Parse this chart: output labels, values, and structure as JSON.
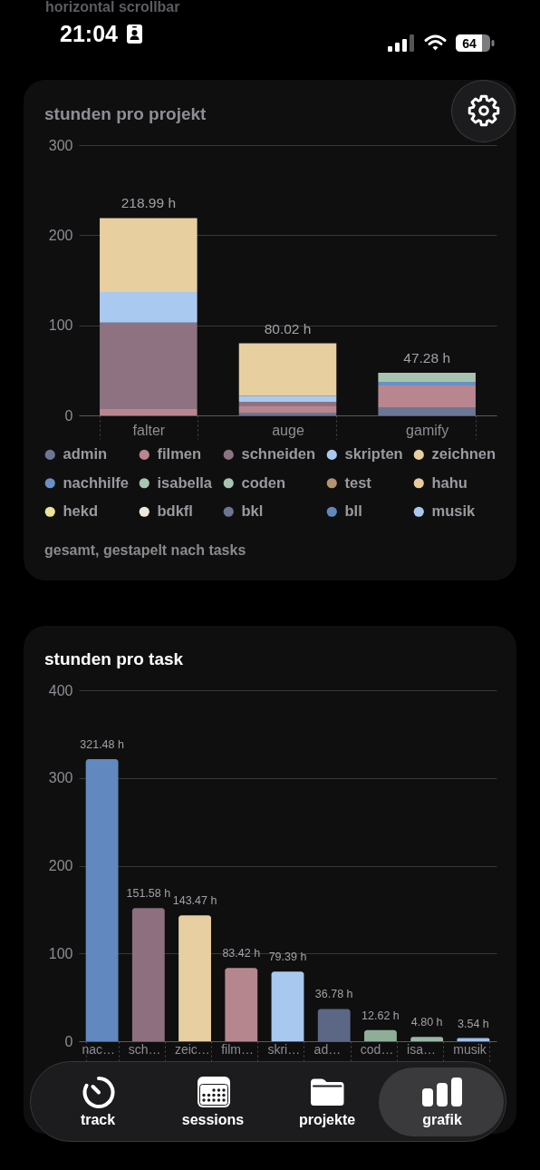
{
  "chart_data": [
    {
      "type": "bar",
      "title": "stunden pro projekt",
      "categories": [
        "falter",
        "auge",
        "gamify"
      ],
      "stacked": true,
      "series": [
        {
          "name": "admin",
          "color": "#6b7794",
          "values": [
            null,
            3,
            9
          ]
        },
        {
          "name": "filmen",
          "color": "#b9868f",
          "values": [
            7,
            7,
            24.28
          ]
        },
        {
          "name": "schneiden",
          "color": "#8f7282",
          "values": [
            96,
            5,
            null
          ]
        },
        {
          "name": "skripten",
          "color": "#aac9f1",
          "values": [
            34,
            7,
            null
          ]
        },
        {
          "name": "zeichnen",
          "color": "#e8cfa0",
          "values": [
            81.99,
            58.02,
            null
          ]
        },
        {
          "name": "nachhilfe",
          "color": "#6990c4",
          "values": [
            null,
            null,
            4
          ]
        },
        {
          "name": "isabella",
          "color": "#a9c5b3",
          "values": [
            null,
            null,
            null
          ]
        },
        {
          "name": "coden",
          "color": "#a6c4b0",
          "values": [
            null,
            null,
            10
          ]
        },
        {
          "name": "test",
          "color": "#b59472",
          "values": [
            null,
            null,
            null
          ]
        },
        {
          "name": "hahu",
          "color": "#e9cc9c",
          "values": [
            null,
            null,
            null
          ]
        },
        {
          "name": "hekd",
          "color": "#ede29c",
          "values": [
            null,
            null,
            null
          ]
        },
        {
          "name": "bdkfl",
          "color": "#f1e8dc",
          "values": [
            null,
            null,
            null
          ]
        },
        {
          "name": "bkl",
          "color": "#6c7591",
          "values": [
            null,
            null,
            null
          ]
        },
        {
          "name": "bll",
          "color": "#6188bd",
          "values": [
            null,
            null,
            null
          ]
        },
        {
          "name": "musik",
          "color": "#a9c8f0",
          "values": [
            null,
            null,
            null
          ]
        }
      ],
      "totals": [
        "218.99 h",
        "80.02 h",
        "47.28 h"
      ],
      "ylim": [
        0,
        300
      ],
      "yticks": [
        0,
        100,
        200,
        300
      ],
      "grid": "y",
      "legend": "bottom",
      "annotations": [
        "gesamt, gestapelt nach tasks",
        "horizontal scrollbar",
        "21:04",
        "64"
      ]
    },
    {
      "type": "bar",
      "title": "stunden pro task",
      "categories": [
        "nac…",
        "sch…",
        "zeic…",
        "film…",
        "skri…",
        "ad…",
        "cod…",
        "isa…",
        "musik"
      ],
      "values": [
        321.48,
        151.58,
        143.47,
        83.42,
        79.39,
        36.78,
        12.62,
        4.8,
        3.54
      ],
      "colors": [
        "#6189bf",
        "#8d6f7f",
        "#e8cfa1",
        "#b6868f",
        "#a8c8f0",
        "#5b6785",
        "#8fae98",
        "#9ab7a3",
        "#9fc0ee"
      ],
      "value_labels": [
        "321.48 h",
        "151.58 h",
        "143.47 h",
        "83.42 h",
        "79.39 h",
        "36.78 h",
        "12.62 h",
        "4.80 h",
        "3.54 h"
      ],
      "ylim": [
        0,
        400
      ],
      "yticks": [
        0,
        100,
        200,
        300,
        400
      ],
      "grid": "y",
      "annotations": [
        "track",
        "sessions",
        "projekte",
        "grafik"
      ]
    }
  ]
}
